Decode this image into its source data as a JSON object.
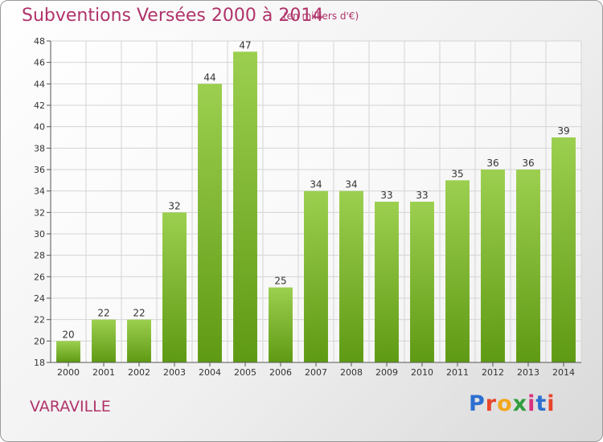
{
  "header": {
    "title": "Subventions Versées 2000 à 2014",
    "unit": "(en milliers d'€)"
  },
  "commune": "VARAVILLE",
  "logo": {
    "text": "Proxiti",
    "letter_colors": [
      "#2d6fd1",
      "#e8452b",
      "#f2a81d",
      "#2f9e3c",
      "#d7317e",
      "#2d6fd1",
      "#e8452b"
    ]
  },
  "colors": {
    "bar_top": "#9ccf4f",
    "bar_bottom": "#5f9a14",
    "title": "#b0336a",
    "grid": "#d4d4d4"
  },
  "chart_data": {
    "type": "bar",
    "title": "Subventions Versées 2000 à 2014",
    "subtitle": "(en milliers d'€)",
    "categories": [
      "2000",
      "2001",
      "2002",
      "2003",
      "2004",
      "2005",
      "2006",
      "2007",
      "2008",
      "2009",
      "2010",
      "2011",
      "2012",
      "2013",
      "2014"
    ],
    "values": [
      20,
      22,
      22,
      32,
      44,
      47,
      25,
      34,
      34,
      33,
      33,
      35,
      36,
      36,
      39
    ],
    "data_labels": [
      "20",
      "22",
      "22",
      "32",
      "44",
      "47",
      "25",
      "34",
      "34",
      "33",
      "33",
      "35",
      "36",
      "36",
      "39"
    ],
    "ylim": [
      18,
      48
    ],
    "yticks": [
      18,
      20,
      22,
      24,
      26,
      28,
      30,
      32,
      34,
      36,
      38,
      40,
      42,
      44,
      46,
      48
    ],
    "grid": true,
    "legend": "none"
  }
}
